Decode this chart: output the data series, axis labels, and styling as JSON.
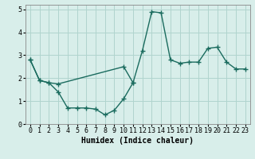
{
  "line1_x": [
    0,
    1,
    2,
    3,
    10,
    11,
    12,
    13,
    14,
    15,
    16,
    17,
    18,
    19,
    20,
    21,
    22,
    23
  ],
  "line1_y": [
    2.8,
    1.9,
    1.8,
    1.75,
    2.5,
    1.8,
    3.2,
    4.9,
    4.85,
    2.8,
    2.65,
    2.7,
    2.7,
    3.3,
    3.35,
    2.7,
    2.4,
    2.4
  ],
  "line2_x": [
    0,
    1,
    2,
    3,
    4,
    5,
    6,
    7,
    8,
    9,
    10,
    11
  ],
  "line2_y": [
    2.8,
    1.9,
    1.8,
    1.4,
    0.7,
    0.7,
    0.7,
    0.65,
    0.4,
    0.6,
    1.1,
    1.8
  ],
  "line_color": "#1a6b5e",
  "bg_color": "#d8eeea",
  "grid_color": "#b0d4ce",
  "xlabel": "Humidex (Indice chaleur)",
  "ylim": [
    0,
    5.2
  ],
  "xlim": [
    -0.5,
    23.5
  ],
  "yticks": [
    0,
    1,
    2,
    3,
    4,
    5
  ],
  "xticks": [
    0,
    1,
    2,
    3,
    4,
    5,
    6,
    7,
    8,
    9,
    10,
    11,
    12,
    13,
    14,
    15,
    16,
    17,
    18,
    19,
    20,
    21,
    22,
    23
  ],
  "xlabel_fontsize": 7,
  "tick_fontsize": 6,
  "marker": "+",
  "markersize": 4,
  "markeredgewidth": 1.0,
  "linewidth": 1.0
}
